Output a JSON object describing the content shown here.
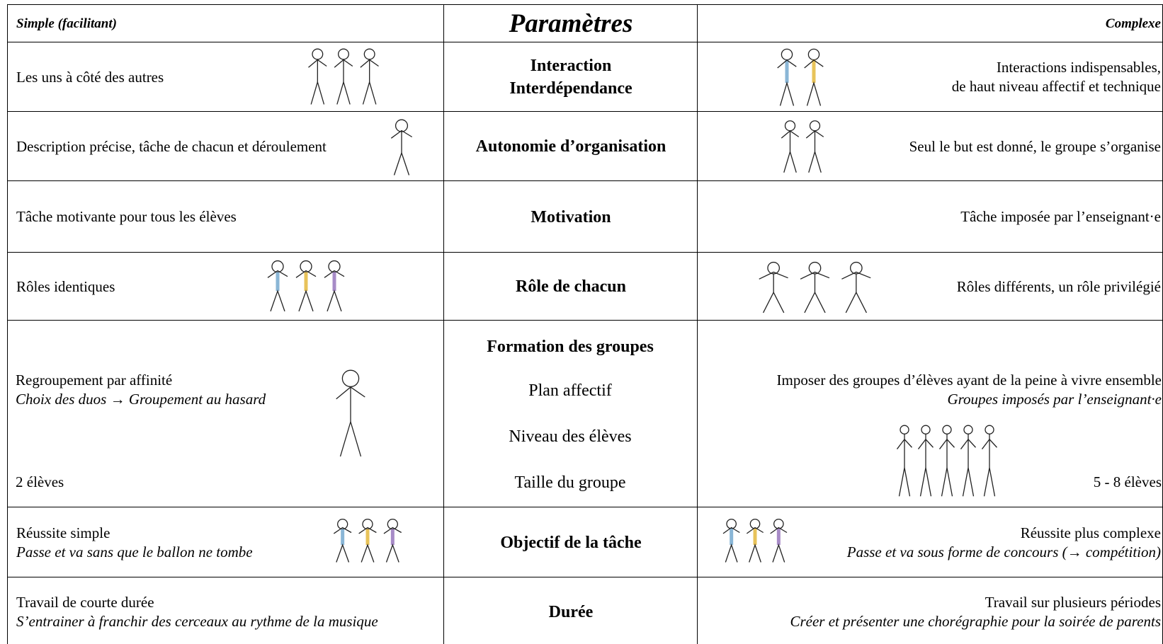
{
  "header": {
    "simple": "Simple (facilitant)",
    "parameters": "Paramètres",
    "complex": "Complexe"
  },
  "rows": [
    {
      "simple": {
        "lines": [
          "Les uns à côté des autres"
        ]
      },
      "parameter": {
        "lines": [
          "Interaction",
          "Interdépendance"
        ]
      },
      "complex": {
        "lines": [
          "Interactions indispensables,",
          "de haut niveau affectif et technique"
        ]
      }
    },
    {
      "simple": {
        "lines": [
          "Description précise, tâche de chacun et déroulement"
        ]
      },
      "parameter": {
        "lines": [
          "Autonomie d’organisation"
        ]
      },
      "complex": {
        "lines": [
          "Seul le but est donné, le groupe s’organise"
        ]
      }
    },
    {
      "simple": {
        "lines": [
          "Tâche motivante pour tous les élèves"
        ]
      },
      "parameter": {
        "lines": [
          "Motivation"
        ]
      },
      "complex": {
        "lines": [
          "Tâche imposée par l’enseignant·e"
        ]
      }
    },
    {
      "simple": {
        "lines": [
          "Rôles identiques"
        ]
      },
      "parameter": {
        "lines": [
          "Rôle de chacun"
        ]
      },
      "complex": {
        "lines": [
          "Rôles différents, un rôle privilégié"
        ]
      }
    },
    {
      "simple": {
        "lines": [
          "Regroupement par affinité"
        ],
        "example": "Choix des duos   → Groupement au hasard",
        "size": "2 élèves"
      },
      "parameter": {
        "lines": [
          "Formation des groupes"
        ],
        "items": [
          "Plan affectif",
          "Niveau des élèves",
          "Taille du groupe"
        ]
      },
      "complex": {
        "lines": [
          "Imposer des groupes d’élèves ayant de la peine à vivre ensemble"
        ],
        "example": "Groupes imposés par l’enseignant·e",
        "size": "5 - 8 élèves"
      }
    },
    {
      "simple": {
        "lines": [
          "Réussite simple"
        ],
        "example": "Passe et va sans que le ballon ne tombe"
      },
      "parameter": {
        "lines": [
          "Objectif de la tâche"
        ]
      },
      "complex": {
        "lines": [
          "Réussite plus complexe"
        ],
        "example": "Passe et va sous forme de concours (→ compétition)"
      }
    },
    {
      "simple": {
        "lines": [
          "Travail de courte durée"
        ],
        "example": "S’entrainer à franchir des cerceaux au rythme de la musique"
      },
      "parameter": {
        "lines": [
          "Durée"
        ]
      },
      "complex": {
        "lines": [
          "Travail sur plusieurs périodes"
        ],
        "example": "Créer et présenter une chorégraphie pour la soirée de parents"
      }
    }
  ]
}
